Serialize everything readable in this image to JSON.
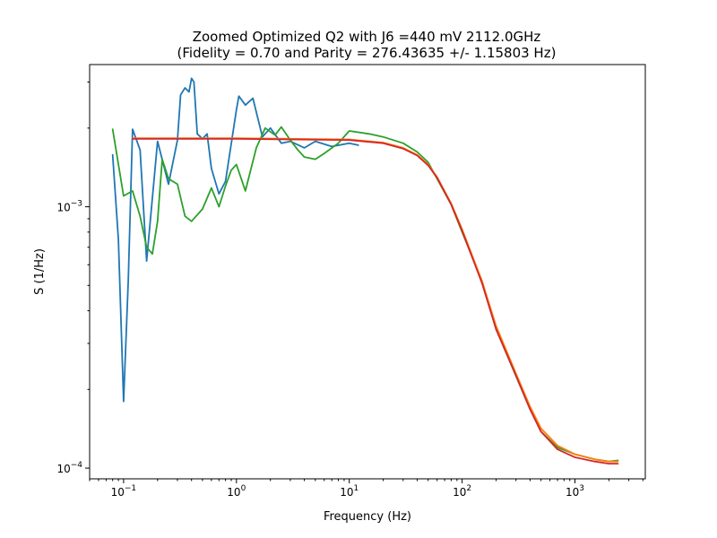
{
  "chart_data": {
    "type": "line",
    "title": [
      "Zoomed Optimized Q2 with J6 =440 mV 2112.0GHz",
      "(Fidelity = 0.70 and Parity = 276.43635 +/- 1.15803 Hz)"
    ],
    "xlabel": "Frequency (Hz)",
    "ylabel": "S (1/Hz)",
    "xscale": "log",
    "yscale": "log",
    "xlim": [
      0.05,
      4200
    ],
    "ylim": [
      9.1e-05,
      0.0035
    ],
    "grid": false,
    "x_ticks": [
      {
        "value": 0.1,
        "base": "10",
        "exp": "−1"
      },
      {
        "value": 1,
        "base": "10",
        "exp": "0"
      },
      {
        "value": 10,
        "base": "10",
        "exp": "1"
      },
      {
        "value": 100,
        "base": "10",
        "exp": "2"
      },
      {
        "value": 1000,
        "base": "10",
        "exp": "3"
      }
    ],
    "y_ticks": [
      {
        "value": 0.0001,
        "base": "10",
        "exp": "−4"
      },
      {
        "value": 0.001,
        "base": "10",
        "exp": "−3"
      }
    ],
    "series": [
      {
        "color": "#1f77b4",
        "points": [
          [
            0.08,
            0.00158
          ],
          [
            0.09,
            0.00075
          ],
          [
            0.1,
            0.00018
          ],
          [
            0.11,
            0.00052
          ],
          [
            0.12,
            0.00198
          ],
          [
            0.14,
            0.00165
          ],
          [
            0.16,
            0.00062
          ],
          [
            0.2,
            0.00178
          ],
          [
            0.25,
            0.00122
          ],
          [
            0.3,
            0.0018
          ],
          [
            0.32,
            0.00268
          ],
          [
            0.35,
            0.00285
          ],
          [
            0.38,
            0.00275
          ],
          [
            0.4,
            0.0031
          ],
          [
            0.42,
            0.003
          ],
          [
            0.45,
            0.0019
          ],
          [
            0.5,
            0.00182
          ],
          [
            0.55,
            0.0019
          ],
          [
            0.6,
            0.0014
          ],
          [
            0.7,
            0.00112
          ],
          [
            0.8,
            0.00125
          ],
          [
            1.0,
            0.00235
          ],
          [
            1.05,
            0.00265
          ],
          [
            1.2,
            0.00245
          ],
          [
            1.4,
            0.0026
          ],
          [
            1.7,
            0.00185
          ],
          [
            2.0,
            0.002
          ],
          [
            2.5,
            0.00175
          ],
          [
            3.0,
            0.00178
          ],
          [
            4.0,
            0.00168
          ],
          [
            5.0,
            0.00178
          ],
          [
            7.0,
            0.0017
          ],
          [
            10.0,
            0.00175
          ],
          [
            12.0,
            0.00172
          ]
        ]
      },
      {
        "color": "#2ca02c",
        "points": [
          [
            0.08,
            0.00198
          ],
          [
            0.1,
            0.0011
          ],
          [
            0.12,
            0.00115
          ],
          [
            0.14,
            0.00092
          ],
          [
            0.16,
            0.0007
          ],
          [
            0.18,
            0.00066
          ],
          [
            0.2,
            0.00088
          ],
          [
            0.22,
            0.00152
          ],
          [
            0.25,
            0.00128
          ],
          [
            0.3,
            0.00122
          ],
          [
            0.35,
            0.00092
          ],
          [
            0.4,
            0.00088
          ],
          [
            0.5,
            0.00098
          ],
          [
            0.6,
            0.00118
          ],
          [
            0.7,
            0.001
          ],
          [
            0.8,
            0.0012
          ],
          [
            0.9,
            0.00138
          ],
          [
            1.0,
            0.00145
          ],
          [
            1.2,
            0.00115
          ],
          [
            1.5,
            0.00168
          ],
          [
            1.8,
            0.002
          ],
          [
            2.2,
            0.00188
          ],
          [
            2.5,
            0.00202
          ],
          [
            3.0,
            0.0018
          ],
          [
            3.5,
            0.00165
          ],
          [
            4.0,
            0.00155
          ],
          [
            5.0,
            0.00152
          ],
          [
            6.0,
            0.0016
          ],
          [
            8.0,
            0.00175
          ],
          [
            10.0,
            0.00195
          ],
          [
            15.0,
            0.0019
          ],
          [
            20.0,
            0.00185
          ],
          [
            30.0,
            0.00175
          ],
          [
            40.0,
            0.00162
          ],
          [
            50.0,
            0.00148
          ],
          [
            60.0,
            0.00128
          ],
          [
            80.0,
            0.00102
          ],
          [
            100.0,
            0.0008
          ],
          [
            150.0,
            0.00052
          ],
          [
            200.0,
            0.00034
          ],
          [
            300.0,
            0.000225
          ],
          [
            400.0,
            0.000168
          ],
          [
            500.0,
            0.000138
          ],
          [
            700.0,
            0.00012
          ],
          [
            1000.0,
            0.000113
          ],
          [
            1500.0,
            0.000108
          ],
          [
            2000.0,
            0.000106
          ],
          [
            2400.0,
            0.000107
          ]
        ]
      },
      {
        "color": "#ff7f0e",
        "points": [
          [
            0.12,
            0.00183
          ],
          [
            1.0,
            0.00183
          ],
          [
            10.0,
            0.00181
          ],
          [
            20.0,
            0.00176
          ],
          [
            30.0,
            0.00168
          ],
          [
            40.0,
            0.00158
          ],
          [
            50.0,
            0.00145
          ],
          [
            60.0,
            0.0013
          ],
          [
            80.0,
            0.00103
          ],
          [
            100.0,
            0.00082
          ],
          [
            150.0,
            0.00052
          ],
          [
            200.0,
            0.00035
          ],
          [
            300.0,
            0.00023
          ],
          [
            400.0,
            0.000172
          ],
          [
            500.0,
            0.000142
          ],
          [
            700.0,
            0.000122
          ],
          [
            1000.0,
            0.000113
          ],
          [
            1500.0,
            0.000108
          ],
          [
            2000.0,
            0.000106
          ],
          [
            2400.0,
            0.000106
          ]
        ]
      },
      {
        "color": "#d62728",
        "points": [
          [
            0.12,
            0.00182
          ],
          [
            1.0,
            0.00182
          ],
          [
            10.0,
            0.0018
          ],
          [
            20.0,
            0.00175
          ],
          [
            30.0,
            0.00167
          ],
          [
            40.0,
            0.00157
          ],
          [
            50.0,
            0.00144
          ],
          [
            60.0,
            0.00129
          ],
          [
            80.0,
            0.00102
          ],
          [
            100.0,
            0.00081
          ],
          [
            150.0,
            0.00051
          ],
          [
            200.0,
            0.00034
          ],
          [
            300.0,
            0.000226
          ],
          [
            400.0,
            0.000168
          ],
          [
            500.0,
            0.000138
          ],
          [
            700.0,
            0.000118
          ],
          [
            1000.0,
            0.00011
          ],
          [
            1500.0,
            0.000106
          ],
          [
            2000.0,
            0.000104
          ],
          [
            2400.0,
            0.000104
          ]
        ]
      }
    ]
  }
}
